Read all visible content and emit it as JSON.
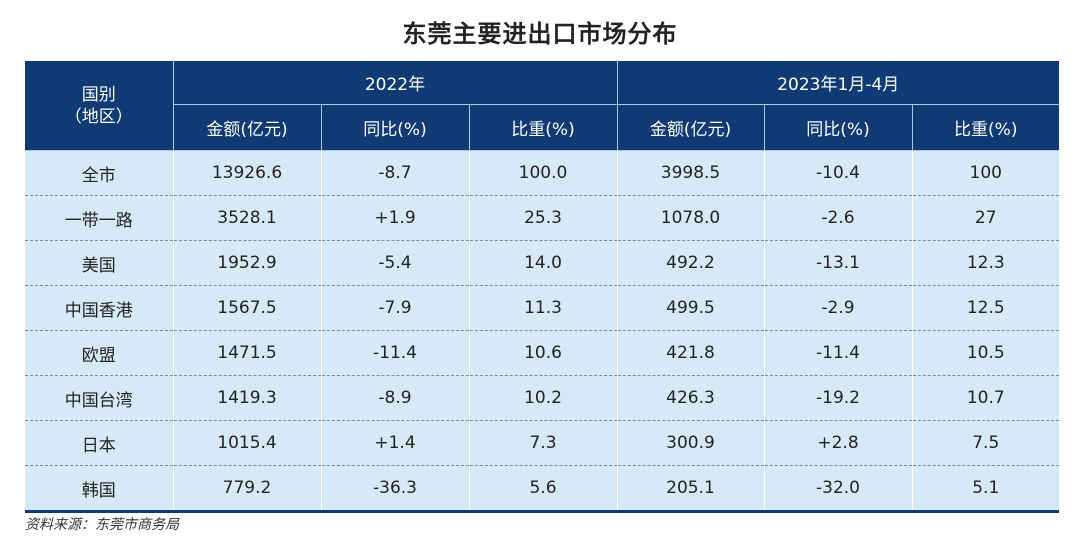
{
  "title": "东莞主要进出口市场分布",
  "header": {
    "region": "国别",
    "region_sub": "（地区）",
    "group_2022": "2022年",
    "group_2023": "2023年1月-4月",
    "col_amount": "金额(亿元)",
    "col_yoy": "同比(%)",
    "col_share": "比重(%)"
  },
  "rows": [
    {
      "region": "全市",
      "a22": "13926.6",
      "y22": "-8.7",
      "s22": "100.0",
      "a23": "3998.5",
      "y23": "-10.4",
      "s23": "100"
    },
    {
      "region": "一带一路",
      "a22": "3528.1",
      "y22": "+1.9",
      "s22": "25.3",
      "a23": "1078.0",
      "y23": "-2.6",
      "s23": "27"
    },
    {
      "region": "美国",
      "a22": "1952.9",
      "y22": "-5.4",
      "s22": "14.0",
      "a23": "492.2",
      "y23": "-13.1",
      "s23": "12.3"
    },
    {
      "region": "中国香港",
      "a22": "1567.5",
      "y22": "-7.9",
      "s22": "11.3",
      "a23": "499.5",
      "y23": "-2.9",
      "s23": "12.5"
    },
    {
      "region": "欧盟",
      "a22": "1471.5",
      "y22": "-11.4",
      "s22": "10.6",
      "a23": "421.8",
      "y23": "-11.4",
      "s23": "10.5"
    },
    {
      "region": "中国台湾",
      "a22": "1419.3",
      "y22": "-8.9",
      "s22": "10.2",
      "a23": "426.3",
      "y23": "-19.2",
      "s23": "10.7"
    },
    {
      "region": "日本",
      "a22": "1015.4",
      "y22": "+1.4",
      "s22": "7.3",
      "a23": "300.9",
      "y23": "+2.8",
      "s23": "7.5"
    },
    {
      "region": "韩国",
      "a22": "779.2",
      "y22": "-36.3",
      "s22": "5.6",
      "a23": "205.1",
      "y23": "-32.0",
      "s23": "5.1"
    }
  ],
  "source": "资料来源：东莞市商务局"
}
